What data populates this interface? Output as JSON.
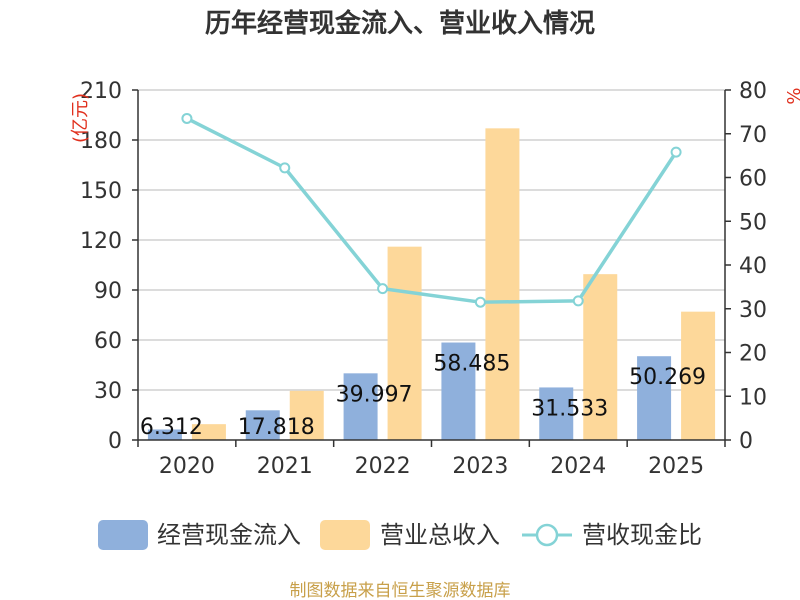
{
  "chart_data": {
    "type": "bar",
    "title": "历年经营现金流入、营业收入情况",
    "categories": [
      "2020",
      "2021",
      "2022",
      "2023",
      "2024",
      "2025"
    ],
    "series": [
      {
        "name": "经营现金流入",
        "kind": "bar",
        "axis": "left",
        "color": "#8fb0dc",
        "values": [
          6.312,
          17.818,
          39.997,
          58.485,
          31.533,
          50.269
        ],
        "labels": [
          "6.312",
          "17.818",
          "39.997",
          "58.485",
          "31.533",
          "50.269"
        ]
      },
      {
        "name": "营业总收入",
        "kind": "bar",
        "axis": "left",
        "color": "#fdd89a",
        "values": [
          9.5,
          29.5,
          116,
          187,
          99.5,
          77
        ]
      },
      {
        "name": "营收现金比",
        "kind": "line",
        "axis": "right",
        "color": "#84d3d6",
        "values": [
          73.5,
          62.2,
          34.6,
          31.5,
          31.8,
          65.8
        ]
      }
    ],
    "y_left": {
      "min": 0,
      "max": 210,
      "ticks": [
        "0",
        "30",
        "60",
        "90",
        "120",
        "150",
        "180",
        "210"
      ],
      "unit": "(亿元)"
    },
    "y_right": {
      "min": 0,
      "max": 80,
      "ticks": [
        "0",
        "10",
        "20",
        "30",
        "40",
        "50",
        "60",
        "70",
        "80"
      ],
      "unit": "%"
    },
    "grid": true,
    "legend": "bottom"
  },
  "source": "制图数据来自恒生聚源数据库"
}
